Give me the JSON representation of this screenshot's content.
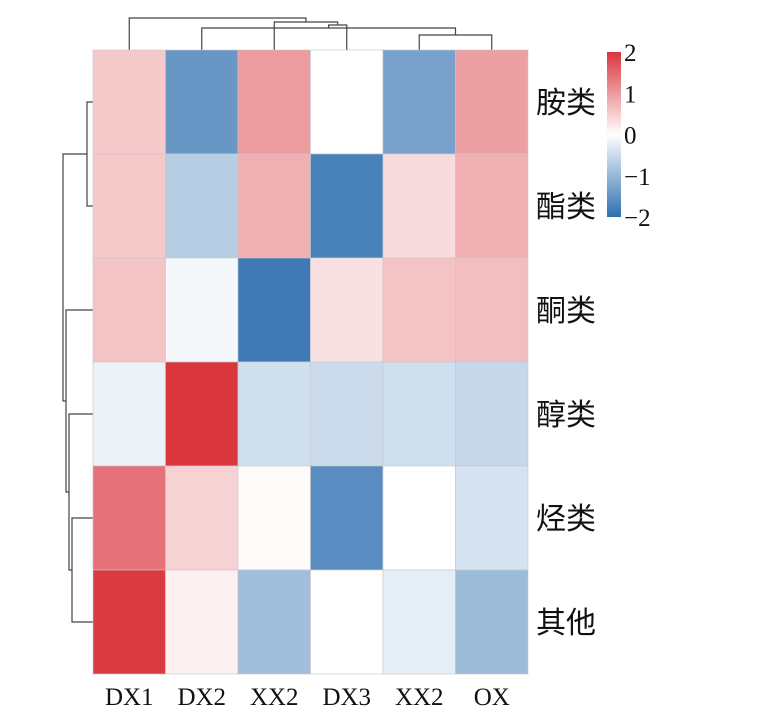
{
  "chart_data": {
    "type": "heatmap",
    "title": "",
    "xlabel": "",
    "ylabel": "",
    "columns": [
      "DX1",
      "DX2",
      "XX2",
      "DX3",
      "XX2",
      "OX"
    ],
    "rows": [
      "胺类",
      "酯类",
      "酮类",
      "醇类",
      "烃类",
      "其他"
    ],
    "values": [
      [
        0.55,
        -1.45,
        1.0,
        0.0,
        -1.3,
        0.95
      ],
      [
        0.55,
        -0.7,
        0.8,
        -1.75,
        0.35,
        0.8
      ],
      [
        0.6,
        -0.1,
        -1.85,
        0.3,
        0.6,
        0.65
      ],
      [
        -0.2,
        2.0,
        -0.45,
        -0.5,
        -0.45,
        -0.55
      ],
      [
        1.4,
        0.45,
        0.05,
        -1.6,
        0.0,
        -0.4
      ],
      [
        1.95,
        0.15,
        -0.9,
        0.0,
        -0.25,
        -0.95
      ]
    ],
    "color_scale": {
      "min": -2,
      "max": 2,
      "ticks": [
        2,
        1,
        0,
        -1,
        -2
      ],
      "tick_labels": [
        "2",
        "1",
        "0",
        "−1",
        "−2"
      ],
      "colors": {
        "low": "#2f6fb0",
        "mid": "#ffffff",
        "high": "#d9363e"
      }
    },
    "column_dendrogram": true,
    "row_dendrogram": true,
    "legend_position": "top-right"
  }
}
